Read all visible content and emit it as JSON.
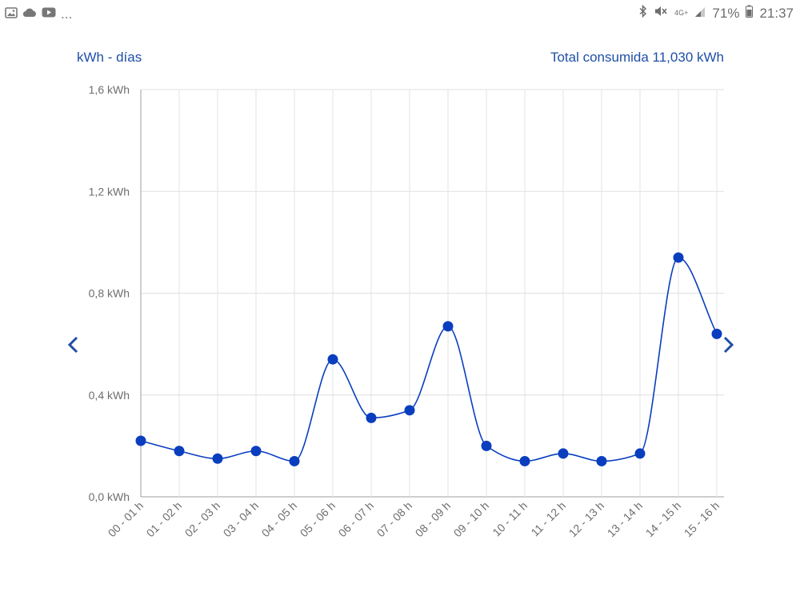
{
  "status_bar": {
    "left_icons": [
      "image-icon",
      "cloud-icon",
      "youtube-icon"
    ],
    "more_text": "...",
    "network_text": "4G+",
    "battery_text": "71%",
    "time": "21:37"
  },
  "header": {
    "unit_label": "kWh - días",
    "total_label": "Total consumida 11,030 kWh"
  },
  "navigation": {
    "prev_icon": "chevron-left-icon",
    "next_icon": "chevron-right-icon"
  },
  "colors": {
    "accent": "#0a3ebf",
    "text_blue": "#1f4fa6",
    "grid": "#dddddd",
    "axis_text": "#6e6e6e"
  },
  "chart_data": {
    "type": "line",
    "categories": [
      "00 - 01 h",
      "01 - 02 h",
      "02 - 03 h",
      "03 - 04 h",
      "04 - 05 h",
      "05 - 06 h",
      "06 - 07 h",
      "07 - 08 h",
      "08 - 09 h",
      "09 - 10 h",
      "10 - 11 h",
      "11 - 12 h",
      "12 - 13 h",
      "13 - 14 h",
      "14 - 15 h",
      "15 - 16 h"
    ],
    "values": [
      0.22,
      0.18,
      0.15,
      0.18,
      0.14,
      0.54,
      0.31,
      0.34,
      0.67,
      0.2,
      0.14,
      0.17,
      0.14,
      0.17,
      0.94,
      0.64
    ],
    "y_ticks": [
      "1,6 kWh",
      "1,2 kWh",
      "0,8 kWh",
      "0,4 kWh",
      "0,0 kWh"
    ],
    "ylim": [
      0,
      1.6
    ],
    "grid": true,
    "smooth": true
  }
}
